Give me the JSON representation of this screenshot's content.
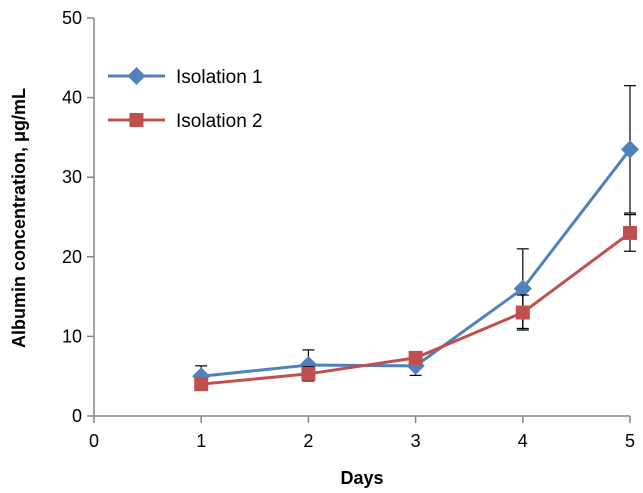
{
  "chart_data": {
    "type": "line",
    "xlabel": "Days",
    "ylabel": "Albumin concentration, μg/mL",
    "xlim": [
      0,
      5
    ],
    "ylim": [
      0,
      50
    ],
    "x_ticks": [
      "0",
      "1",
      "2",
      "3",
      "4",
      "5"
    ],
    "y_ticks": [
      "0",
      "10",
      "20",
      "30",
      "40",
      "50"
    ],
    "grid": false,
    "legend_position": "top-left",
    "series": [
      {
        "name": "Isolation 1",
        "color": "#4f81bd",
        "marker": "diamond",
        "x": [
          1,
          2,
          3,
          4,
          5
        ],
        "y": [
          5.0,
          6.4,
          6.3,
          16.0,
          33.5
        ],
        "error": [
          1.3,
          1.9,
          1.2,
          5.0,
          8.0
        ]
      },
      {
        "name": "Isolation 2",
        "color": "#c0504d",
        "marker": "square",
        "x": [
          1,
          2,
          3,
          4,
          5
        ],
        "y": [
          4.0,
          5.3,
          7.3,
          13.0,
          23.0
        ],
        "error": [
          0.6,
          0.9,
          0.6,
          2.2,
          2.3
        ]
      }
    ]
  }
}
